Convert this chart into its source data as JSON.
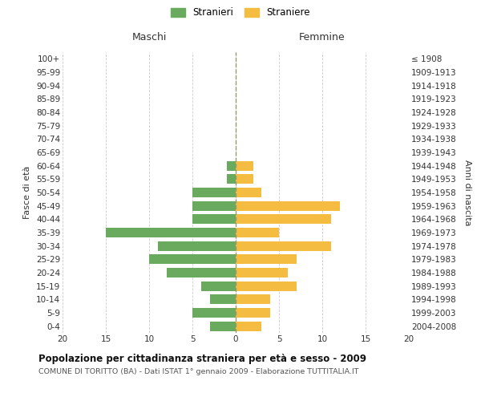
{
  "age_groups": [
    "100+",
    "95-99",
    "90-94",
    "85-89",
    "80-84",
    "75-79",
    "70-74",
    "65-69",
    "60-64",
    "55-59",
    "50-54",
    "45-49",
    "40-44",
    "35-39",
    "30-34",
    "25-29",
    "20-24",
    "15-19",
    "10-14",
    "5-9",
    "0-4"
  ],
  "birth_years": [
    "≤ 1908",
    "1909-1913",
    "1914-1918",
    "1919-1923",
    "1924-1928",
    "1929-1933",
    "1934-1938",
    "1939-1943",
    "1944-1948",
    "1949-1953",
    "1954-1958",
    "1959-1963",
    "1964-1968",
    "1969-1973",
    "1974-1978",
    "1979-1983",
    "1984-1988",
    "1989-1993",
    "1994-1998",
    "1999-2003",
    "2004-2008"
  ],
  "males": [
    0,
    0,
    0,
    0,
    0,
    0,
    0,
    0,
    1,
    1,
    5,
    5,
    5,
    15,
    9,
    10,
    8,
    4,
    3,
    5,
    3
  ],
  "females": [
    0,
    0,
    0,
    0,
    0,
    0,
    0,
    0,
    2,
    2,
    3,
    12,
    11,
    5,
    11,
    7,
    6,
    7,
    4,
    4,
    3
  ],
  "male_color": "#6aaa5e",
  "female_color": "#f5bc42",
  "title": "Popolazione per cittadinanza straniera per età e sesso - 2009",
  "subtitle": "COMUNE DI TORITTO (BA) - Dati ISTAT 1° gennaio 2009 - Elaborazione TUTTITALIA.IT",
  "ylabel_left": "Fasce di età",
  "ylabel_right": "Anni di nascita",
  "label_maschi": "Maschi",
  "label_femmine": "Femmine",
  "legend_male": "Stranieri",
  "legend_female": "Straniere",
  "xlim": 20,
  "background_color": "#ffffff",
  "grid_color": "#cccccc",
  "center_line_color": "#999966"
}
